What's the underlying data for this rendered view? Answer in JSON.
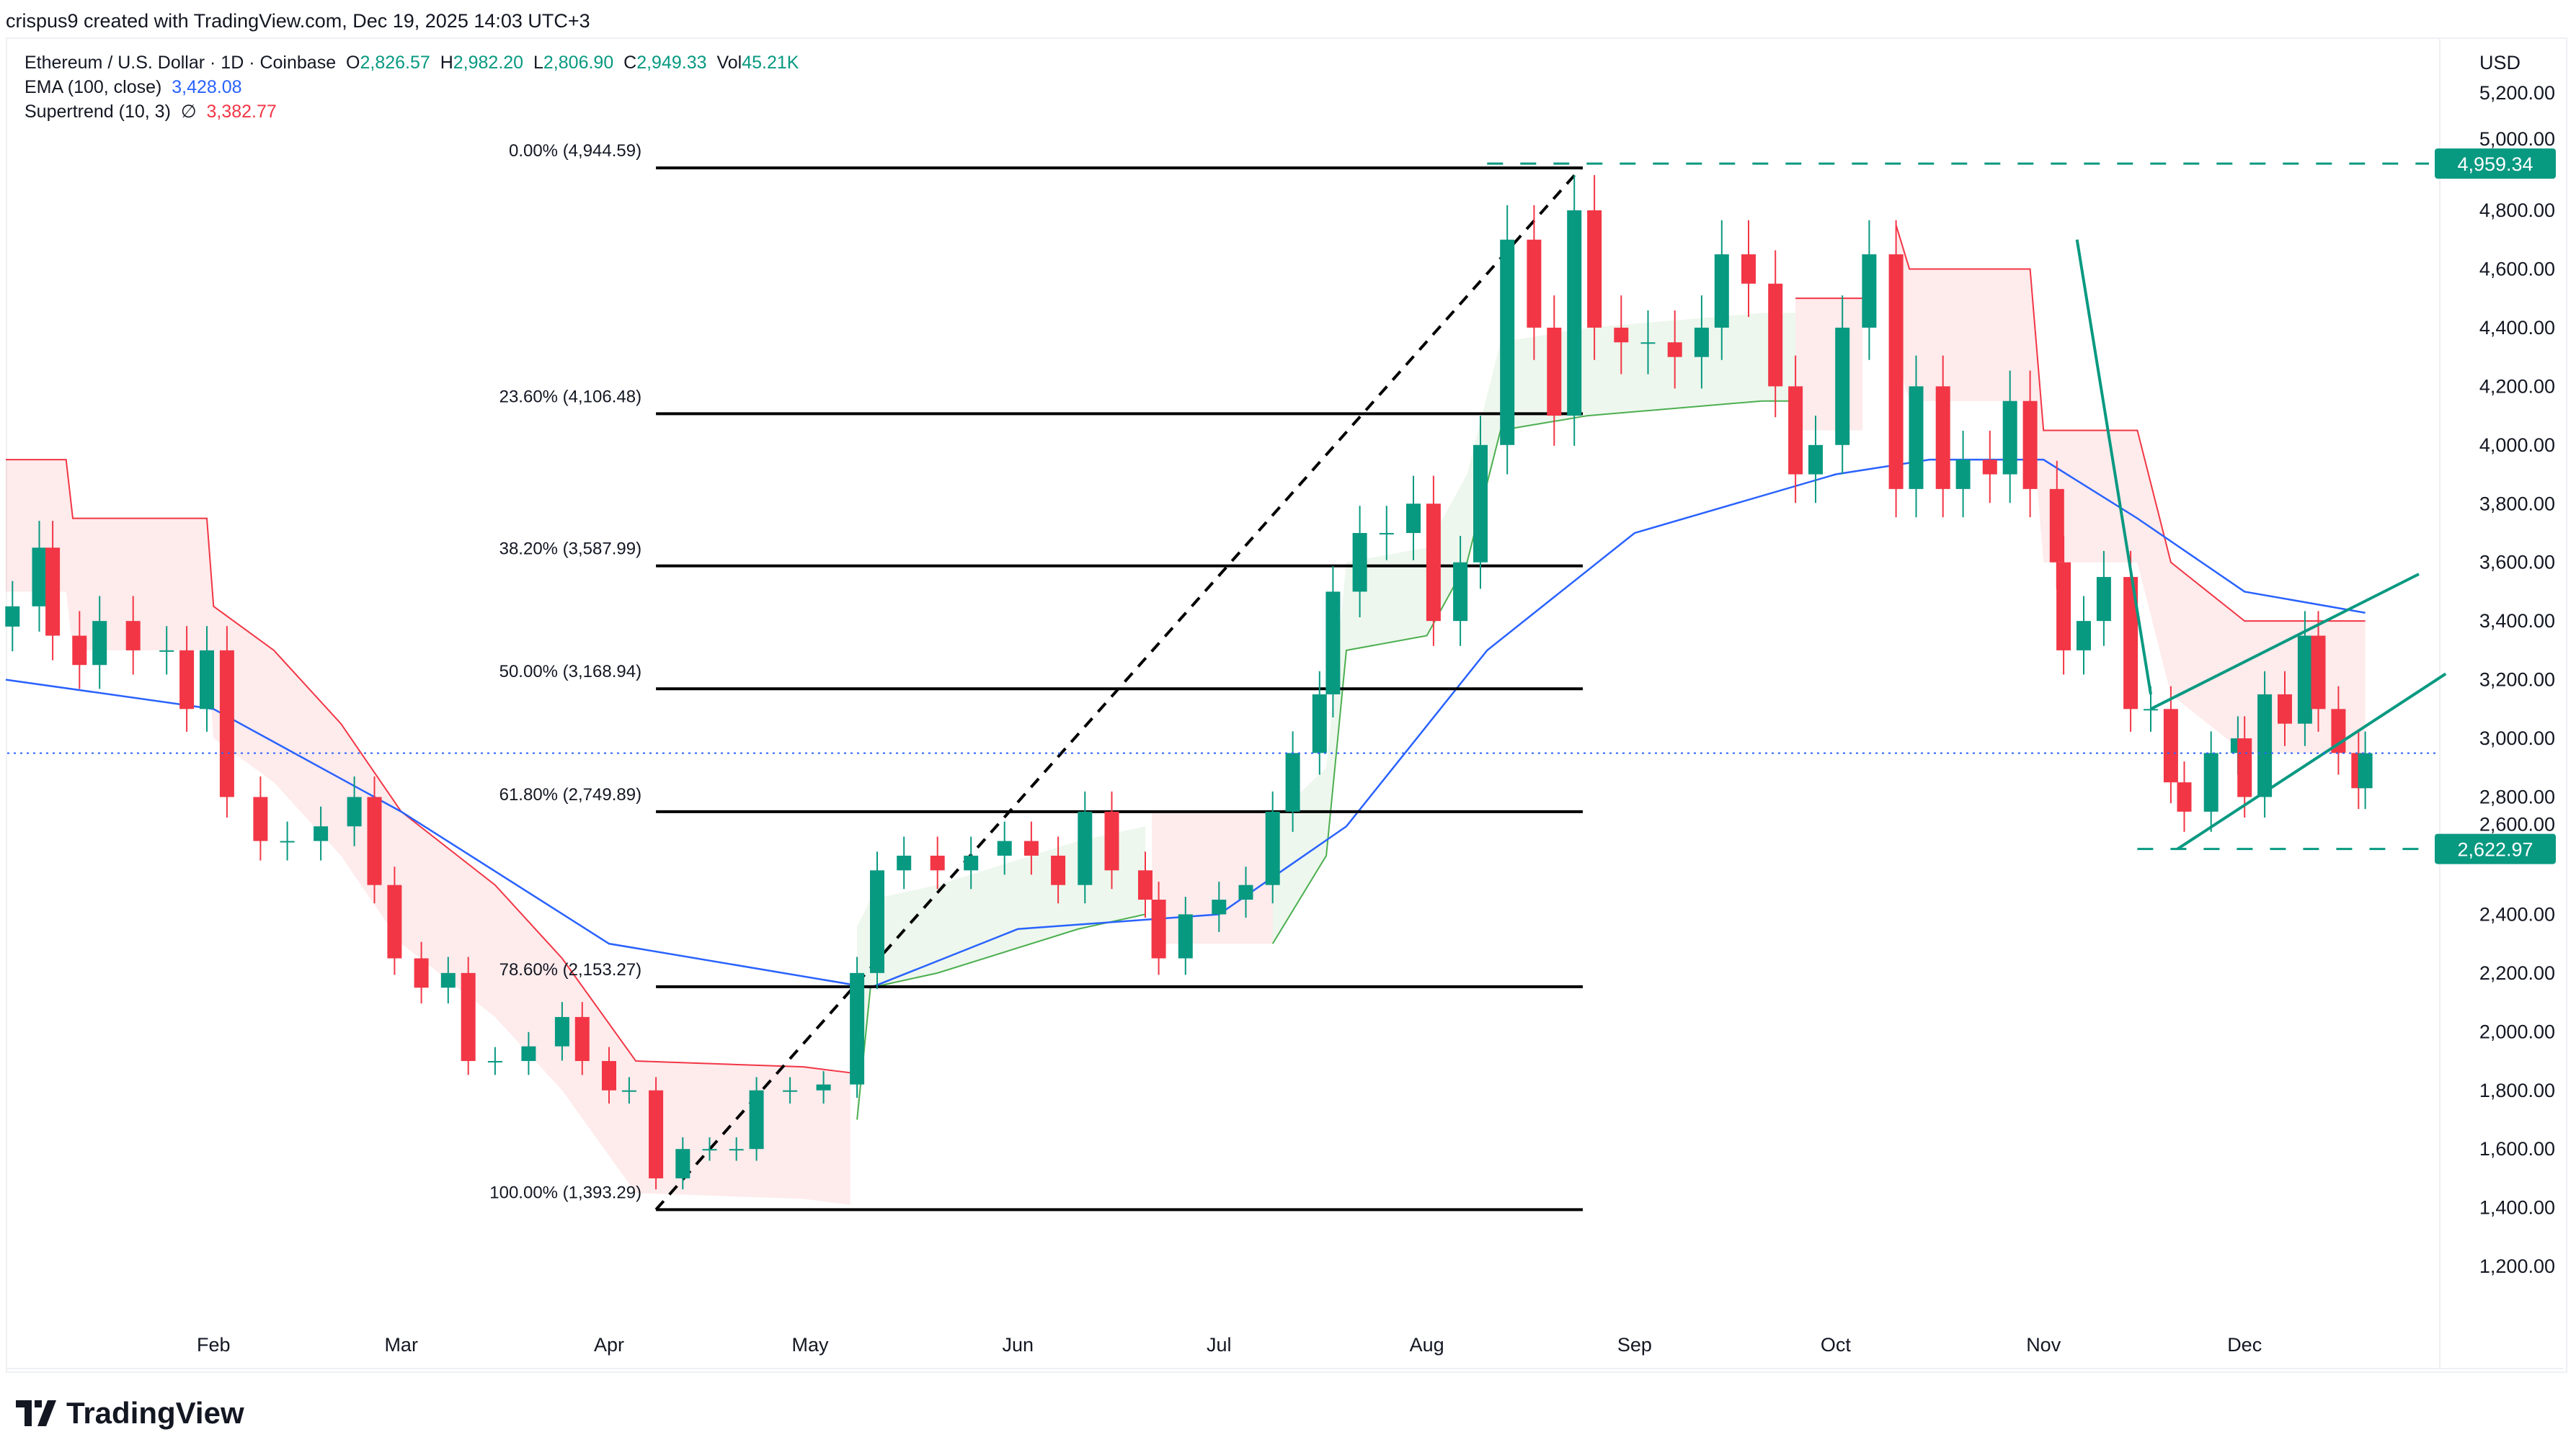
{
  "header": {
    "credit": "crispus9 created with TradingView.com, Dec 19, 2025 14:03 UTC+3"
  },
  "legend": {
    "symbol": "Ethereum / U.S. Dollar · 1D · Coinbase",
    "o_label": "O",
    "o": "2,826.57",
    "h_label": "H",
    "h": "2,982.20",
    "l_label": "L",
    "l": "2,806.90",
    "c_label": "C",
    "c": "2,949.33",
    "vol_label": "Vol",
    "vol": "45.21K",
    "ema_label": "EMA (100, close)",
    "ema": "3,428.08",
    "st_label": "Supertrend (10, 3)",
    "st_sym": "∅",
    "st": "3,382.77"
  },
  "logo": "TradingView",
  "colors": {
    "up": "#089981",
    "down": "#f23645",
    "ema": "#2962ff",
    "st_up": "#4caf50",
    "st_down": "#f23645"
  },
  "chart_data": {
    "type": "candlestick",
    "currency": "USD",
    "ylim": [
      1100,
      5300
    ],
    "y_ticks": [
      "5,200.00",
      "5,000.00",
      "4,800.00",
      "4,600.00",
      "4,400.00",
      "4,200.00",
      "4,000.00",
      "3,800.00",
      "3,600.00",
      "3,400.00",
      "3,200.00",
      "3,000.00",
      "2,800.00",
      "2,600.00",
      "2,400.00",
      "2,200.00",
      "2,000.00",
      "1,800.00",
      "1,600.00",
      "1,400.00",
      "1,200.00"
    ],
    "x_ticks": [
      {
        "label": "Feb",
        "date": "2025-02-01"
      },
      {
        "label": "Mar",
        "date": "2025-03-01"
      },
      {
        "label": "Apr",
        "date": "2025-04-01"
      },
      {
        "label": "May",
        "date": "2025-05-01"
      },
      {
        "label": "Jun",
        "date": "2025-06-01"
      },
      {
        "label": "Jul",
        "date": "2025-07-01"
      },
      {
        "label": "Aug",
        "date": "2025-08-01"
      },
      {
        "label": "Sep",
        "date": "2025-09-01"
      },
      {
        "label": "Oct",
        "date": "2025-10-01"
      },
      {
        "label": "Nov",
        "date": "2025-11-01"
      },
      {
        "label": "Dec",
        "date": "2025-12-01"
      }
    ],
    "closes": [
      [
        "2025-01-02",
        3450
      ],
      [
        "2025-01-06",
        3650
      ],
      [
        "2025-01-08",
        3350
      ],
      [
        "2025-01-12",
        3250
      ],
      [
        "2025-01-15",
        3400
      ],
      [
        "2025-01-20",
        3300
      ],
      [
        "2025-01-25",
        3300
      ],
      [
        "2025-01-28",
        3100
      ],
      [
        "2025-01-31",
        3300
      ],
      [
        "2025-02-03",
        2800
      ],
      [
        "2025-02-08",
        2650
      ],
      [
        "2025-02-12",
        2650
      ],
      [
        "2025-02-17",
        2700
      ],
      [
        "2025-02-22",
        2800
      ],
      [
        "2025-02-25",
        2500
      ],
      [
        "2025-02-28",
        2250
      ],
      [
        "2025-03-04",
        2150
      ],
      [
        "2025-03-08",
        2200
      ],
      [
        "2025-03-11",
        1900
      ],
      [
        "2025-03-15",
        1900
      ],
      [
        "2025-03-20",
        1950
      ],
      [
        "2025-03-25",
        2050
      ],
      [
        "2025-03-28",
        1900
      ],
      [
        "2025-04-01",
        1800
      ],
      [
        "2025-04-04",
        1800
      ],
      [
        "2025-04-08",
        1500
      ],
      [
        "2025-04-12",
        1600
      ],
      [
        "2025-04-16",
        1600
      ],
      [
        "2025-04-20",
        1600
      ],
      [
        "2025-04-23",
        1800
      ],
      [
        "2025-04-28",
        1800
      ],
      [
        "2025-05-03",
        1820
      ],
      [
        "2025-05-08",
        2200
      ],
      [
        "2025-05-11",
        2550
      ],
      [
        "2025-05-15",
        2600
      ],
      [
        "2025-05-20",
        2550
      ],
      [
        "2025-05-25",
        2600
      ],
      [
        "2025-05-30",
        2650
      ],
      [
        "2025-06-03",
        2600
      ],
      [
        "2025-06-07",
        2500
      ],
      [
        "2025-06-11",
        2750
      ],
      [
        "2025-06-15",
        2550
      ],
      [
        "2025-06-20",
        2450
      ],
      [
        "2025-06-22",
        2250
      ],
      [
        "2025-06-26",
        2400
      ],
      [
        "2025-07-01",
        2450
      ],
      [
        "2025-07-05",
        2500
      ],
      [
        "2025-07-09",
        2750
      ],
      [
        "2025-07-12",
        2950
      ],
      [
        "2025-07-16",
        3150
      ],
      [
        "2025-07-18",
        3500
      ],
      [
        "2025-07-22",
        3700
      ],
      [
        "2025-07-26",
        3700
      ],
      [
        "2025-07-30",
        3800
      ],
      [
        "2025-08-02",
        3400
      ],
      [
        "2025-08-06",
        3600
      ],
      [
        "2025-08-09",
        4000
      ],
      [
        "2025-08-13",
        4700
      ],
      [
        "2025-08-17",
        4400
      ],
      [
        "2025-08-20",
        4100
      ],
      [
        "2025-08-23",
        4800
      ],
      [
        "2025-08-26",
        4400
      ],
      [
        "2025-08-30",
        4350
      ],
      [
        "2025-09-03",
        4350
      ],
      [
        "2025-09-07",
        4300
      ],
      [
        "2025-09-11",
        4400
      ],
      [
        "2025-09-14",
        4650
      ],
      [
        "2025-09-18",
        4550
      ],
      [
        "2025-09-22",
        4200
      ],
      [
        "2025-09-25",
        3900
      ],
      [
        "2025-09-28",
        4000
      ],
      [
        "2025-10-02",
        4400
      ],
      [
        "2025-10-06",
        4650
      ],
      [
        "2025-10-10",
        3850
      ],
      [
        "2025-10-13",
        4200
      ],
      [
        "2025-10-17",
        3850
      ],
      [
        "2025-10-20",
        3950
      ],
      [
        "2025-10-24",
        3900
      ],
      [
        "2025-10-27",
        4150
      ],
      [
        "2025-10-30",
        3850
      ],
      [
        "2025-11-03",
        3600
      ],
      [
        "2025-11-04",
        3300
      ],
      [
        "2025-11-07",
        3400
      ],
      [
        "2025-11-10",
        3550
      ],
      [
        "2025-11-14",
        3100
      ],
      [
        "2025-11-17",
        3100
      ],
      [
        "2025-11-20",
        2850
      ],
      [
        "2025-11-22",
        2750
      ],
      [
        "2025-11-26",
        2950
      ],
      [
        "2025-11-30",
        3000
      ],
      [
        "2025-12-01",
        2800
      ],
      [
        "2025-12-04",
        3150
      ],
      [
        "2025-12-07",
        3050
      ],
      [
        "2025-12-10",
        3350
      ],
      [
        "2025-12-12",
        3100
      ],
      [
        "2025-12-15",
        2950
      ],
      [
        "2025-12-18",
        2830
      ],
      [
        "2025-12-19",
        2949.33
      ]
    ],
    "ema": [
      [
        "2025-01-01",
        3200
      ],
      [
        "2025-02-01",
        3100
      ],
      [
        "2025-03-01",
        2750
      ],
      [
        "2025-04-01",
        2300
      ],
      [
        "2025-05-10",
        2150
      ],
      [
        "2025-06-01",
        2350
      ],
      [
        "2025-07-01",
        2400
      ],
      [
        "2025-07-20",
        2700
      ],
      [
        "2025-08-10",
        3300
      ],
      [
        "2025-09-01",
        3700
      ],
      [
        "2025-10-01",
        3900
      ],
      [
        "2025-10-15",
        3950
      ],
      [
        "2025-11-01",
        3950
      ],
      [
        "2025-11-15",
        3750
      ],
      [
        "2025-12-01",
        3500
      ],
      [
        "2025-12-19",
        3428.08
      ]
    ],
    "supertrend": [
      {
        "dir": "down",
        "points": [
          [
            "2025-01-01",
            3950
          ],
          [
            "2025-01-10",
            3950
          ],
          [
            "2025-01-11",
            3750
          ],
          [
            "2025-01-31",
            3750
          ],
          [
            "2025-02-01",
            3450
          ],
          [
            "2025-02-10",
            3300
          ],
          [
            "2025-02-20",
            3050
          ],
          [
            "2025-03-01",
            2750
          ],
          [
            "2025-03-15",
            2500
          ],
          [
            "2025-03-25",
            2250
          ],
          [
            "2025-04-05",
            1900
          ],
          [
            "2025-04-30",
            1880
          ],
          [
            "2025-05-07",
            1860
          ]
        ]
      },
      {
        "dir": "up",
        "points": [
          [
            "2025-05-08",
            1700
          ],
          [
            "2025-05-10",
            2150
          ],
          [
            "2025-05-20",
            2200
          ],
          [
            "2025-06-10",
            2350
          ],
          [
            "2025-06-20",
            2400
          ]
        ]
      },
      {
        "dir": "down",
        "points": [
          [
            "2025-06-21",
            2750
          ],
          [
            "2025-07-09",
            2750
          ]
        ]
      },
      {
        "dir": "up",
        "points": [
          [
            "2025-07-09",
            2300
          ],
          [
            "2025-07-17",
            2600
          ],
          [
            "2025-07-20",
            3300
          ],
          [
            "2025-08-01",
            3350
          ],
          [
            "2025-08-07",
            3600
          ],
          [
            "2025-08-12",
            4050
          ],
          [
            "2025-08-25",
            4100
          ],
          [
            "2025-09-20",
            4150
          ],
          [
            "2025-09-25",
            4150
          ]
        ]
      },
      {
        "dir": "down",
        "points": [
          [
            "2025-09-25",
            4500
          ],
          [
            "2025-10-05",
            4500
          ]
        ]
      },
      {
        "dir": "down",
        "points": [
          [
            "2025-10-10",
            4750
          ],
          [
            "2025-10-12",
            4600
          ],
          [
            "2025-10-30",
            4600
          ],
          [
            "2025-11-01",
            4050
          ],
          [
            "2025-11-15",
            4050
          ],
          [
            "2025-11-20",
            3600
          ],
          [
            "2025-12-01",
            3400
          ],
          [
            "2025-12-19",
            3400
          ]
        ]
      }
    ],
    "fibonacci": {
      "from": [
        "2025-04-08",
        1393.29
      ],
      "to": [
        "2025-08-24",
        4944.59
      ],
      "levels": [
        {
          "label": "0.00% (4,944.59)",
          "price": 4944.59
        },
        {
          "label": "23.60% (4,106.48)",
          "price": 4106.48
        },
        {
          "label": "38.20% (3,587.99)",
          "price": 3587.99
        },
        {
          "label": "50.00% (3,168.94)",
          "price": 3168.94
        },
        {
          "label": "61.80% (2,749.89)",
          "price": 2749.89
        },
        {
          "label": "78.60% (2,153.27)",
          "price": 2153.27
        },
        {
          "label": "100.00% (1,393.29)",
          "price": 1393.29
        }
      ]
    },
    "price_markers": [
      {
        "label": "4,959.34",
        "price": 4959.34,
        "from": "2025-08-10"
      },
      {
        "label": "2,622.97",
        "price": 2622.97,
        "from": "2025-11-15"
      }
    ],
    "trendlines": [
      [
        [
          "2025-11-06",
          4700
        ],
        [
          "2025-11-17",
          3150
        ]
      ],
      [
        [
          "2025-11-21",
          2622.97
        ],
        [
          "2025-12-31",
          3220
        ]
      ],
      [
        [
          "2025-11-17",
          3100
        ],
        [
          "2025-12-27",
          3560
        ]
      ]
    ],
    "last_price": 2949.33
  }
}
